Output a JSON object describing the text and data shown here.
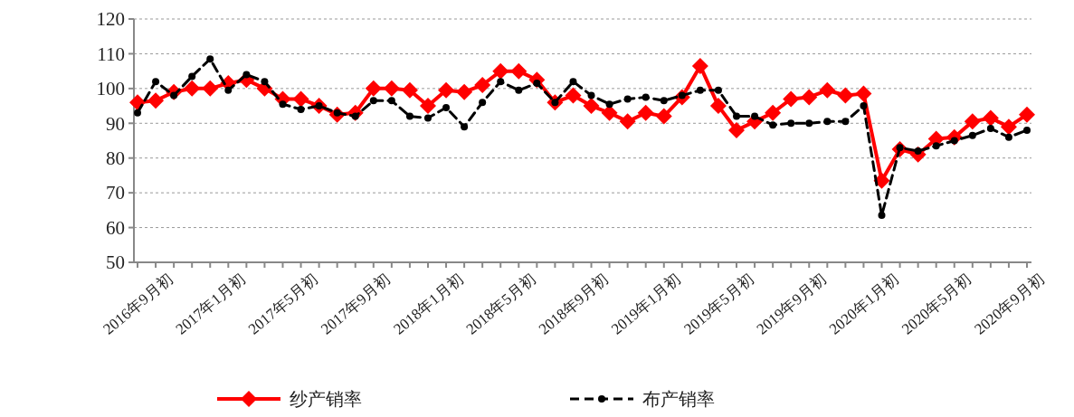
{
  "chart_data": {
    "type": "line",
    "categories": [
      "2016年9月初",
      null,
      null,
      null,
      "2017年1月初",
      null,
      null,
      null,
      "2017年5月初",
      null,
      null,
      null,
      "2017年9月初",
      null,
      null,
      null,
      "2018年1月初",
      null,
      null,
      null,
      "2018年5月初",
      null,
      null,
      null,
      "2018年9月初",
      null,
      null,
      null,
      "2019年1月初",
      null,
      null,
      null,
      "2019年5月初",
      null,
      null,
      null,
      "2019年9月初",
      null,
      null,
      null,
      "2020年1月初",
      null,
      null,
      null,
      "2020年5月初",
      null,
      null,
      null,
      "2020年9月初",
      null
    ],
    "series": [
      {
        "name": "纱产销率",
        "color": "#ff0000",
        "marker": "diamond",
        "line_style": "solid",
        "values": [
          96,
          96.5,
          99,
          100,
          100,
          101.5,
          102.5,
          100,
          97,
          97,
          95,
          92.5,
          93,
          100,
          100,
          99.5,
          95,
          99.5,
          99,
          101,
          105,
          105,
          102.5,
          96,
          98,
          95,
          93,
          90.5,
          93,
          92,
          97.5,
          106.5,
          95,
          88,
          90.5,
          93,
          97,
          97.5,
          99.5,
          98,
          98.5,
          73.5,
          82.5,
          81,
          85.5,
          86,
          90.5,
          91.5,
          89,
          92.5
        ]
      },
      {
        "name": "布产销率",
        "color": "#000000",
        "marker": "circle",
        "line_style": "dashed",
        "values": [
          93,
          102,
          98,
          103.5,
          108.5,
          99.5,
          104,
          102,
          95.5,
          94,
          95,
          93,
          92,
          96.5,
          96.5,
          92,
          91.5,
          94.5,
          89,
          96,
          102,
          99.5,
          101.5,
          96,
          102,
          98,
          95.5,
          97,
          97.5,
          96.5,
          98,
          99.5,
          99.5,
          92,
          92,
          89.5,
          90,
          90,
          90.5,
          90.5,
          95,
          63.5,
          83,
          82,
          83.5,
          85,
          86.5,
          88.5,
          86,
          88
        ]
      }
    ],
    "ylim": [
      50,
      120
    ],
    "yticks": [
      50,
      60,
      70,
      80,
      90,
      100,
      110,
      120
    ],
    "grid": "y",
    "legend": "bottom"
  }
}
